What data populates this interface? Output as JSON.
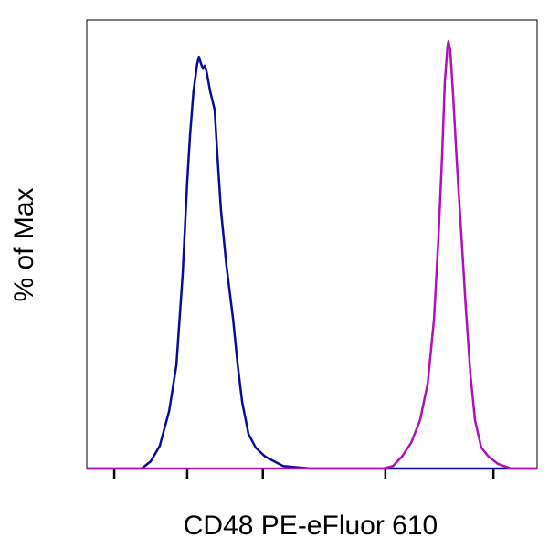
{
  "chart_data": {
    "type": "line",
    "xlabel": "CD48 PE-eFluor 610",
    "ylabel": "% of Max",
    "xlim": [
      0,
      100
    ],
    "ylim": [
      0,
      105
    ],
    "xticks": [
      6.1,
      22.3,
      39.1,
      66.3,
      90.3
    ],
    "series": [
      {
        "color": "#0a0aa0",
        "x": [
          0,
          12.2,
          14.2,
          16.2,
          18.3,
          19.9,
          21.3,
          22.3,
          22.9,
          23.7,
          24.5,
          24.9,
          25.4,
          25.8,
          26.2,
          26.6,
          27.4,
          28.4,
          29.0,
          29.8,
          31.0,
          32.5,
          33.5,
          34.5,
          35.9,
          37.5,
          39.6,
          41.6,
          43.6,
          49.7,
          100
        ],
        "values": [
          0,
          0,
          1.7,
          5.3,
          13.5,
          24.2,
          45.6,
          67.0,
          77.6,
          88.3,
          94.7,
          96.4,
          94.7,
          93.6,
          94.3,
          93.0,
          88.3,
          84.0,
          73.3,
          60.5,
          47.7,
          34.9,
          24.2,
          15.6,
          8.1,
          4.9,
          2.8,
          1.7,
          0.6,
          0,
          0
        ]
      },
      {
        "color": "#b010b8",
        "x": [
          0,
          65.9,
          68.0,
          70.0,
          72.0,
          74.0,
          75.7,
          77.1,
          78.1,
          78.9,
          79.5,
          80.1,
          80.3,
          80.7,
          81.3,
          82.2,
          83.2,
          84.2,
          85.2,
          86.2,
          87.6,
          89.2,
          91.3,
          94.3,
          100
        ],
        "values": [
          0,
          0,
          0.6,
          2.8,
          6.0,
          11.3,
          19.9,
          34.9,
          54.1,
          73.3,
          90.4,
          98.9,
          100,
          97.9,
          88.3,
          71.3,
          54.1,
          37.0,
          22.0,
          11.3,
          4.9,
          2.8,
          1.1,
          0,
          0
        ]
      }
    ]
  }
}
